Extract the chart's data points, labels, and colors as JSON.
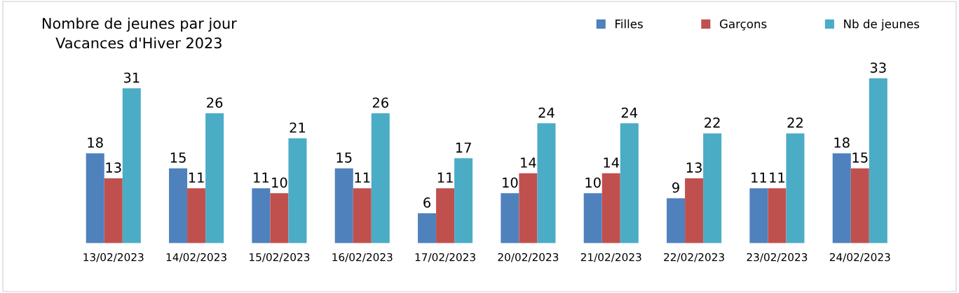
{
  "chart_data": {
    "type": "bar",
    "title": "Nombre de jeunes par jour\nVacances d'Hiver 2023",
    "categories": [
      "13/02/2023",
      "14/02/2023",
      "15/02/2023",
      "16/02/2023",
      "17/02/2023",
      "20/02/2023",
      "21/02/2023",
      "22/02/2023",
      "23/02/2023",
      "24/02/2023"
    ],
    "series": [
      {
        "name": "Filles",
        "color": "#4f81bd",
        "values": [
          18,
          15,
          11,
          15,
          6,
          10,
          10,
          9,
          11,
          18
        ]
      },
      {
        "name": "Garçons",
        "color": "#c0504d",
        "values": [
          13,
          11,
          10,
          11,
          11,
          14,
          14,
          13,
          11,
          15
        ]
      },
      {
        "name": "Nb de jeunes",
        "color": "#4bacc6",
        "values": [
          31,
          26,
          21,
          26,
          17,
          24,
          24,
          22,
          22,
          33
        ]
      }
    ],
    "data_labels": true,
    "legend": "top right",
    "grid": false,
    "tick_labels": "x"
  }
}
